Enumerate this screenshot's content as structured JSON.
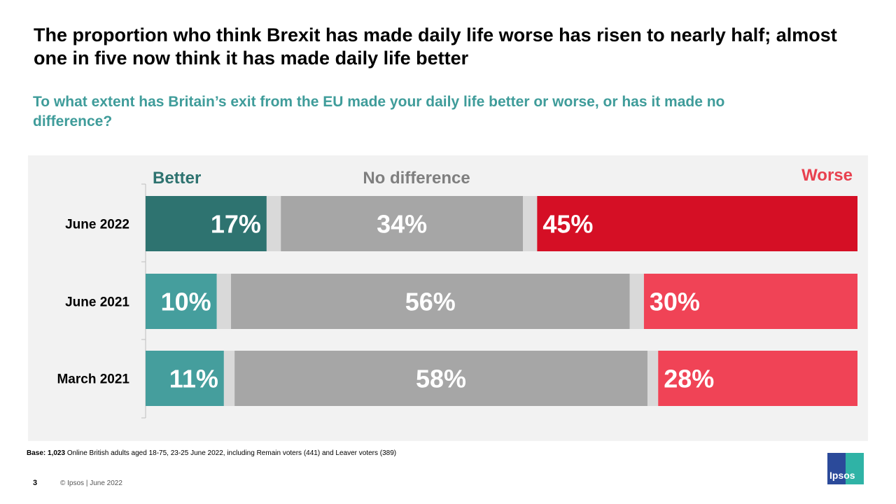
{
  "title": "The proportion who think Brexit has made daily life worse has risen to nearly half; almost one in five now think it has made daily life better",
  "subtitle": "To what extent has Britain’s exit from the EU made your daily life better or worse, or has it made no difference?",
  "chart_data": {
    "type": "bar",
    "orientation": "horizontal-stacked",
    "categories": [
      "June 2022",
      "June 2021",
      "March 2021"
    ],
    "series": [
      {
        "name": "Better",
        "values": [
          17,
          10,
          11
        ],
        "colors": [
          "#2e7370",
          "#459e9d",
          "#459e9d"
        ],
        "labels": [
          "17%",
          "10%",
          "11%"
        ]
      },
      {
        "values": [
          2,
          2,
          1.5
        ],
        "colors": [
          "#d9d9d9",
          "#d9d9d9",
          "#d9d9d9"
        ]
      },
      {
        "name": "No difference",
        "values": [
          34,
          56,
          58
        ],
        "colors": [
          "#a6a6a6",
          "#a6a6a6",
          "#a6a6a6"
        ],
        "labels": [
          "34%",
          "56%",
          "58%"
        ]
      },
      {
        "values": [
          2,
          2,
          1.5
        ],
        "colors": [
          "#d9d9d9",
          "#d9d9d9",
          "#d9d9d9"
        ]
      },
      {
        "name": "Worse",
        "values": [
          45,
          30,
          28
        ],
        "colors": [
          "#d50f25",
          "#f04356",
          "#f04356"
        ],
        "labels": [
          "45%",
          "30%",
          "28%"
        ]
      }
    ],
    "legend_colors": {
      "Better": "#2e7370",
      "No difference": "#7f7f7f",
      "Worse": "#e8414f"
    },
    "xlim": [
      0,
      100
    ],
    "grid": false,
    "legend_placement": "top"
  },
  "footer": {
    "base_label": "Base:",
    "base_count": "1,023",
    "base_text": "Online British adults aged 18-75, 23-25 June 2022, including Remain  voters (441) and Leaver voters (389)",
    "page_number": "3",
    "copyright": "© Ipsos |  June 2022",
    "logo_text": "Ipsos"
  }
}
